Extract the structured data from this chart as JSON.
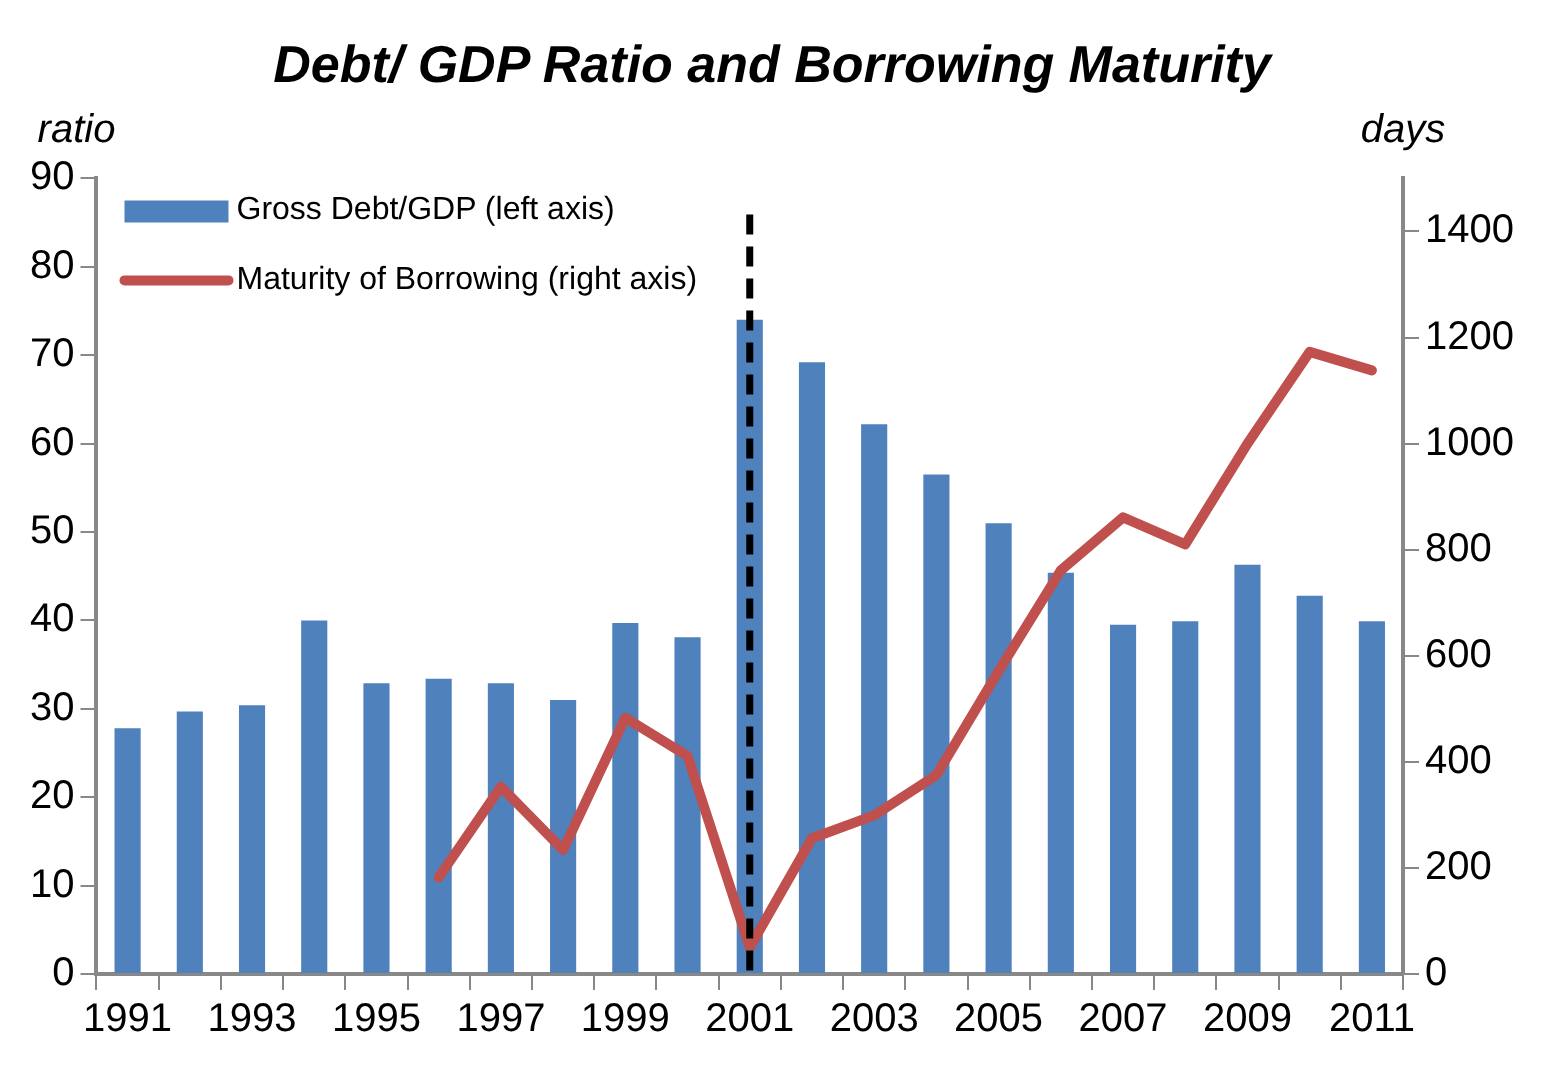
{
  "chart_data": {
    "type": "bar",
    "title": "Debt/ GDP Ratio and Borrowing Maturity",
    "ylabel": "ratio",
    "y2label": "days",
    "categories": [
      "1991",
      null,
      "1993",
      null,
      "1995",
      null,
      "1997",
      null,
      "1999",
      null,
      "2001",
      null,
      "2003",
      null,
      "2005",
      null,
      "2007",
      null,
      "2009",
      null,
      "2011"
    ],
    "series": [
      {
        "name": "Gross Debt/GDP (left axis)",
        "color": "#4f81bd",
        "values": [
          27.8,
          29.7,
          30.4,
          40,
          32.9,
          33.4,
          32.9,
          31,
          39.7,
          38.1,
          74,
          69.2,
          62.2,
          56.5,
          51,
          45.4,
          39.5,
          39.9,
          46.3,
          42.8,
          39.9
        ]
      },
      {
        "name": "Maturity of Borrowing (right axis)",
        "type": "line",
        "axis": "y2",
        "color": "#c0504d",
        "values": [
          null,
          null,
          null,
          null,
          null,
          182,
          353,
          234,
          483,
          411,
          50,
          256,
          299,
          375,
          571,
          761,
          861,
          810,
          1000,
          1173,
          1138
        ]
      }
    ],
    "ylim": [
      0,
      90
    ],
    "yticks": [
      0,
      10,
      20,
      30,
      40,
      50,
      60,
      70,
      80,
      90
    ],
    "y2lim": [
      0,
      1500
    ],
    "y2ticks": [
      0,
      200,
      400,
      600,
      800,
      1000,
      1200,
      1400
    ],
    "ref_lines": [
      {
        "axis": "x",
        "value": "2001",
        "color": "#000000",
        "line_style": "dashed"
      }
    ],
    "legend": "top left",
    "marker": "none",
    "line_style": "solid",
    "grid": false
  }
}
